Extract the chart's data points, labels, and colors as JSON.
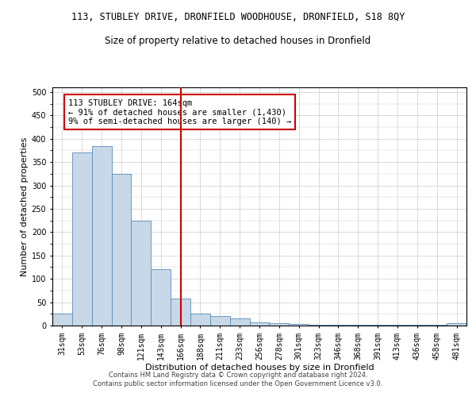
{
  "title": "113, STUBLEY DRIVE, DRONFIELD WOODHOUSE, DRONFIELD, S18 8QY",
  "subtitle": "Size of property relative to detached houses in Dronfield",
  "xlabel": "Distribution of detached houses by size in Dronfield",
  "ylabel": "Number of detached properties",
  "footer_line1": "Contains HM Land Registry data © Crown copyright and database right 2024.",
  "footer_line2": "Contains public sector information licensed under the Open Government Licence v3.0.",
  "categories": [
    "31sqm",
    "53sqm",
    "76sqm",
    "98sqm",
    "121sqm",
    "143sqm",
    "166sqm",
    "188sqm",
    "211sqm",
    "233sqm",
    "256sqm",
    "278sqm",
    "301sqm",
    "323sqm",
    "346sqm",
    "368sqm",
    "391sqm",
    "413sqm",
    "436sqm",
    "458sqm",
    "481sqm"
  ],
  "values": [
    25,
    370,
    385,
    325,
    225,
    120,
    57,
    26,
    20,
    15,
    7,
    5,
    3,
    2,
    2,
    2,
    2,
    2,
    2,
    2,
    5
  ],
  "bar_color": "#c8d8e8",
  "bar_edge_color": "#5b8db8",
  "vline_x": 6,
  "vline_color": "#cc0000",
  "annotation_text": "113 STUBLEY DRIVE: 164sqm\n← 91% of detached houses are smaller (1,430)\n9% of semi-detached houses are larger (140) →",
  "annotation_box_color": "#ffffff",
  "annotation_box_edge_color": "#cc0000",
  "ylim": [
    0,
    510
  ],
  "yticks": [
    0,
    50,
    100,
    150,
    200,
    250,
    300,
    350,
    400,
    450,
    500
  ],
  "grid_color": "#cccccc",
  "background_color": "#ffffff",
  "title_fontsize": 8.5,
  "subtitle_fontsize": 8.5,
  "xlabel_fontsize": 8,
  "ylabel_fontsize": 8,
  "tick_fontsize": 7,
  "annotation_fontsize": 7.5,
  "footer_fontsize": 6
}
